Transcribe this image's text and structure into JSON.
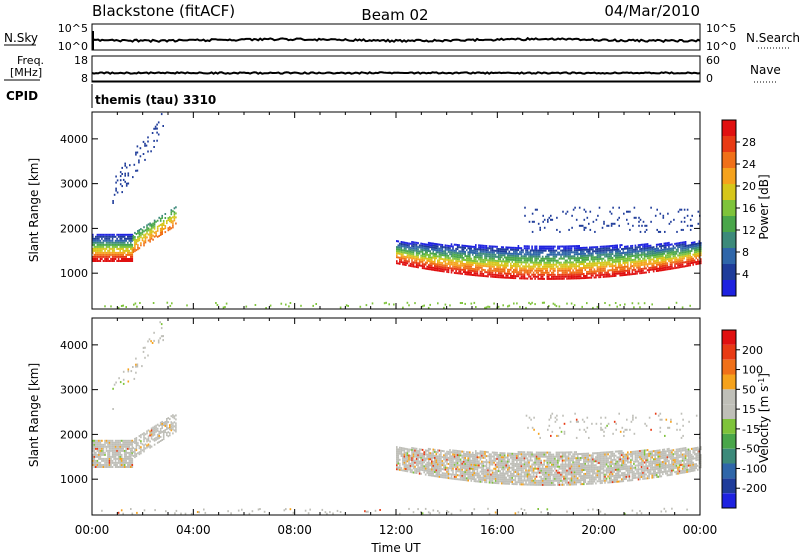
{
  "header": {
    "radar": "Blackstone (fitACF)",
    "beam": "Beam 02",
    "date": "04/Mar/2010"
  },
  "top_panels": {
    "nsky": {
      "label": "N.Sky",
      "ticks_left": [
        "10^5",
        "10^0"
      ],
      "ticks_right": [
        "10^5",
        "10^0"
      ],
      "right_label": "N.Search"
    },
    "freq": {
      "label_line1": "Freq.",
      "label_line2": "[MHz]",
      "ticks_left": [
        "18",
        "8"
      ],
      "ticks_right": [
        "60",
        "0"
      ],
      "right_label": "Nave"
    },
    "cpid": {
      "label": "CPID",
      "value": "themis (tau) 3310"
    }
  },
  "colors": {
    "power_scale": [
      "#1e22e0",
      "#1f3c9a",
      "#2f66a9",
      "#3c8a7a",
      "#49a64a",
      "#7ec33a",
      "#d6c61a",
      "#f5a21c",
      "#f07018",
      "#e83a14",
      "#e01010"
    ],
    "velocity_scale": [
      "#1e22e0",
      "#1f3c9a",
      "#2f66a9",
      "#3c8a7a",
      "#49a64a",
      "#7ec33a",
      "#bfbfb8",
      "#bfbfb8",
      "#f5a21c",
      "#f07018",
      "#e83a14",
      "#e01010"
    ],
    "line": "#000000"
  },
  "chart_data": [
    {
      "type": "heatmap",
      "name": "power-panel",
      "ylabel": "Slant Range [km]",
      "yticks": [
        "1000",
        "2000",
        "3000",
        "4000"
      ],
      "ylim": [
        200,
        4600
      ],
      "xlim": [
        0,
        24
      ],
      "colorbar": {
        "label": "Power [dB]",
        "ticks": [
          "4",
          "8",
          "12",
          "16",
          "20",
          "24",
          "28"
        ],
        "range": [
          0,
          32
        ]
      },
      "features": [
        {
          "t": [
            0.0,
            1.6
          ],
          "r": [
            1250,
            1850
          ],
          "kind": "band"
        },
        {
          "t": [
            1.6,
            3.3
          ],
          "r": [
            1450,
            2450
          ],
          "kind": "rising"
        },
        {
          "t": [
            0.8,
            2.8
          ],
          "r": [
            2600,
            4500
          ],
          "kind": "patch"
        },
        {
          "t": [
            12.0,
            24.0
          ],
          "r": [
            850,
            1700
          ],
          "kind": "band"
        },
        {
          "t": [
            17.0,
            24.0
          ],
          "r": [
            1900,
            2450
          ],
          "kind": "sparse"
        },
        {
          "t": [
            0.0,
            24.0
          ],
          "r": [
            200,
            320
          ],
          "kind": "ground"
        }
      ]
    },
    {
      "type": "heatmap",
      "name": "velocity-panel",
      "ylabel": "Slant Range [km]",
      "yticks": [
        "1000",
        "2000",
        "3000",
        "4000"
      ],
      "ylim": [
        200,
        4600
      ],
      "xlim": [
        0,
        24
      ],
      "xlabel": "Time UT",
      "xticks": [
        "00:00",
        "04:00",
        "08:00",
        "12:00",
        "16:00",
        "20:00",
        "00:00"
      ],
      "colorbar": {
        "label": "Velocity [m s^-1]",
        "ticks": [
          "200",
          "100",
          "50",
          "15",
          "-15",
          "-50",
          "-100",
          "-200"
        ]
      },
      "features": [
        {
          "t": [
            0.0,
            1.6
          ],
          "r": [
            1250,
            1850
          ],
          "kind": "band"
        },
        {
          "t": [
            1.6,
            3.3
          ],
          "r": [
            1450,
            2450
          ],
          "kind": "rising"
        },
        {
          "t": [
            0.8,
            2.8
          ],
          "r": [
            2600,
            4500
          ],
          "kind": "patch"
        },
        {
          "t": [
            12.0,
            24.0
          ],
          "r": [
            850,
            1700
          ],
          "kind": "band"
        },
        {
          "t": [
            17.0,
            24.0
          ],
          "r": [
            1900,
            2450
          ],
          "kind": "sparse"
        },
        {
          "t": [
            0.0,
            24.0
          ],
          "r": [
            200,
            320
          ],
          "kind": "ground"
        }
      ]
    }
  ]
}
